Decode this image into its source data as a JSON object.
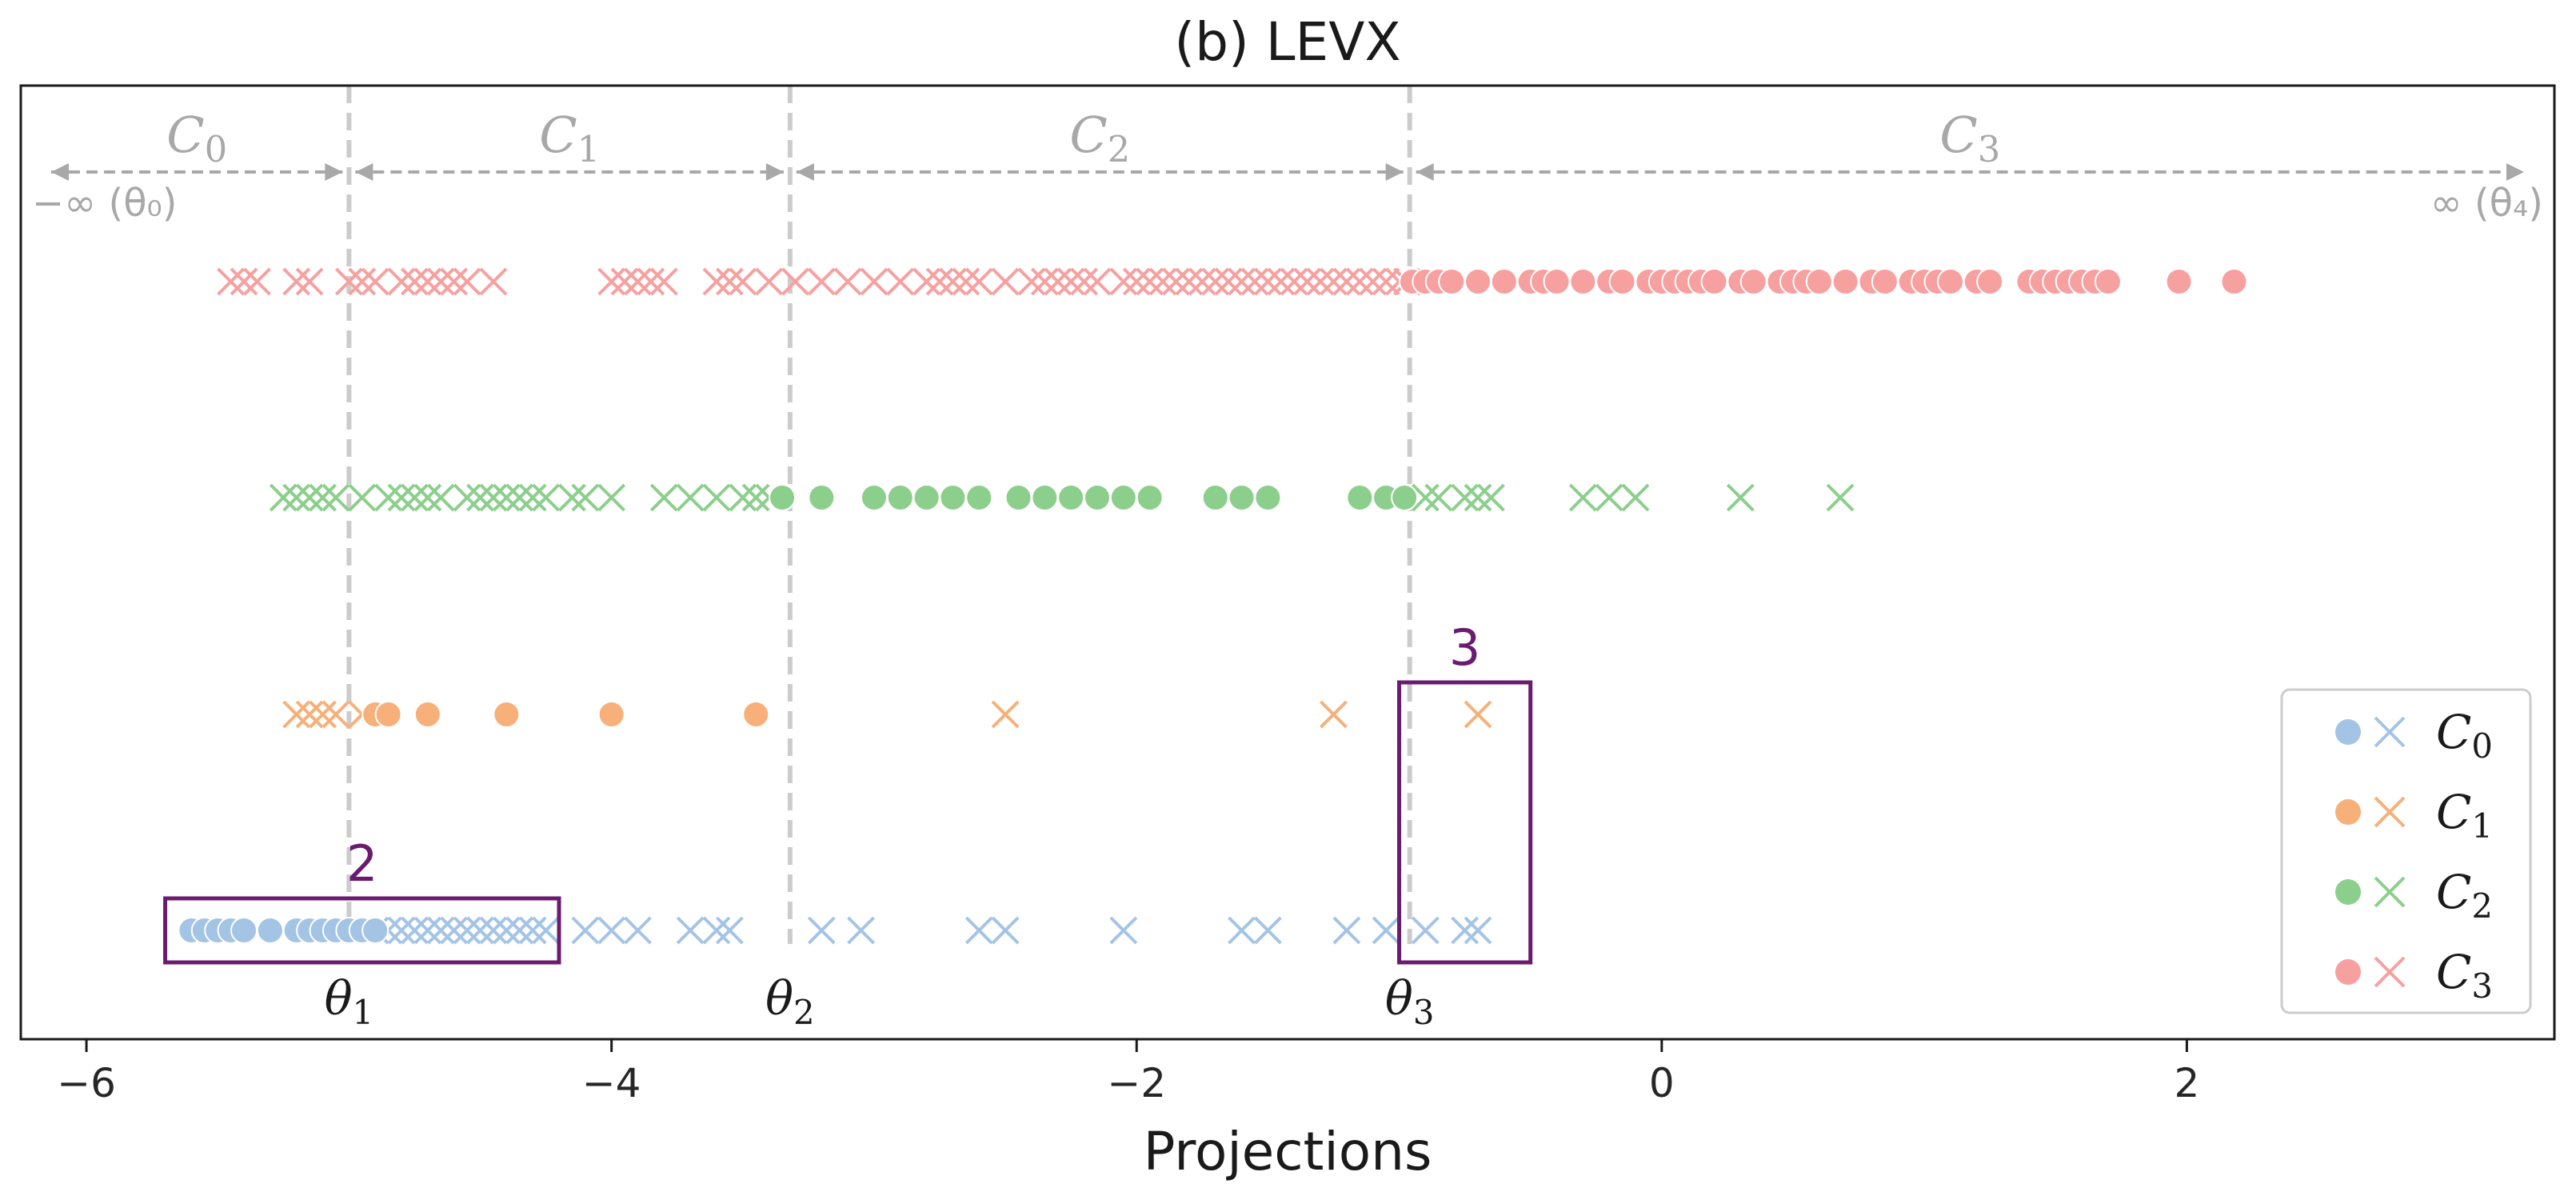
{
  "chart_data": {
    "type": "scatter",
    "title": "(b) LEVX",
    "xlabel": "Projections",
    "ylabel": "",
    "xlim": [
      -6.25,
      3.4
    ],
    "xticks": [
      -6,
      -4,
      -2,
      0,
      2
    ],
    "xtick_labels": [
      "−6",
      "−4",
      "−2",
      "0",
      "2"
    ],
    "rows": [
      "C_3",
      "C_2",
      "C_1",
      "C_0"
    ],
    "thresholds": [
      {
        "name": "theta_1",
        "label": "θ",
        "sub": "1",
        "value": -5.0
      },
      {
        "name": "theta_2",
        "label": "θ",
        "sub": "2",
        "value": -3.32
      },
      {
        "name": "theta_3",
        "label": "θ",
        "sub": "3",
        "value": -0.96
      }
    ],
    "regions": [
      {
        "label": "C",
        "sub": "0",
        "from": -6.25,
        "to": -5.0,
        "left_text": "−∞ (θ₀)"
      },
      {
        "label": "C",
        "sub": "1",
        "from": -5.0,
        "to": -3.32
      },
      {
        "label": "C",
        "sub": "2",
        "from": -3.32,
        "to": -0.96
      },
      {
        "label": "C",
        "sub": "3",
        "from": -0.96,
        "to": 3.4,
        "right_text": "∞ (θ₄)"
      }
    ],
    "series": [
      {
        "name": "C_0",
        "color": "#a4c4e6",
        "row": 3,
        "correct": [
          -5.6,
          -5.55,
          -5.5,
          -5.45,
          -5.4,
          -5.3,
          -5.2,
          -5.15,
          -5.1,
          -5.05,
          -5.0,
          -4.95,
          -4.9
        ],
        "wrong": [
          -5.0,
          -4.95,
          -4.9,
          -4.85,
          -4.8,
          -4.75,
          -4.7,
          -4.65,
          -4.6,
          -4.55,
          -4.5,
          -4.45,
          -4.4,
          -4.35,
          -4.3,
          -4.25,
          -4.1,
          -4.0,
          -3.9,
          -3.7,
          -3.6,
          -3.55,
          -3.2,
          -3.05,
          -2.6,
          -2.5,
          -2.05,
          -1.6,
          -1.5,
          -1.2,
          -1.05,
          -0.9,
          -0.75,
          -0.7
        ]
      },
      {
        "name": "C_1",
        "color": "#f7b07a",
        "row": 2,
        "correct": [
          -4.9,
          -4.85,
          -4.7,
          -4.4,
          -4.0,
          -3.45
        ],
        "wrong": [
          -5.2,
          -5.15,
          -5.1,
          -5.05,
          -4.95,
          -2.5,
          -1.25,
          -0.7
        ]
      },
      {
        "name": "C_2",
        "color": "#8ccf8c",
        "row": 1,
        "correct": [
          -3.35,
          -3.2,
          -3.0,
          -2.9,
          -2.8,
          -2.7,
          -2.6,
          -2.45,
          -2.35,
          -2.25,
          -2.15,
          -2.05,
          -1.95,
          -1.7,
          -1.6,
          -1.5,
          -1.15,
          -1.05,
          -0.98
        ],
        "wrong": [
          -5.25,
          -5.2,
          -5.15,
          -5.1,
          -5.05,
          -4.95,
          -4.85,
          -4.8,
          -4.75,
          -4.7,
          -4.65,
          -4.55,
          -4.5,
          -4.45,
          -4.4,
          -4.35,
          -4.3,
          -4.25,
          -4.15,
          -4.1,
          -4.0,
          -3.8,
          -3.7,
          -3.6,
          -3.5,
          -3.45,
          -3.4,
          -0.9,
          -0.85,
          -0.75,
          -0.7,
          -0.65,
          -0.3,
          -0.2,
          -0.1,
          0.3,
          0.68
        ]
      },
      {
        "name": "C_3",
        "color": "#f7a0a0",
        "row": 0,
        "correct": [
          -0.95,
          -0.9,
          -0.85,
          -0.8,
          -0.7,
          -0.6,
          -0.5,
          -0.45,
          -0.4,
          -0.3,
          -0.2,
          -0.15,
          -0.05,
          0.0,
          0.05,
          0.1,
          0.15,
          0.2,
          0.3,
          0.35,
          0.45,
          0.5,
          0.55,
          0.6,
          0.7,
          0.8,
          0.85,
          0.95,
          1.0,
          1.05,
          1.1,
          1.2,
          1.25,
          1.4,
          1.45,
          1.5,
          1.55,
          1.6,
          1.65,
          1.7,
          1.97,
          2.18
        ],
        "wrong": [
          -5.45,
          -5.4,
          -5.35,
          -5.2,
          -5.15,
          -5.0,
          -4.95,
          -4.9,
          -4.8,
          -4.75,
          -4.7,
          -4.65,
          -4.6,
          -4.55,
          -4.45,
          -4.0,
          -3.95,
          -3.9,
          -3.85,
          -3.8,
          -3.6,
          -3.55,
          -3.5,
          -3.4,
          -3.3,
          -3.2,
          -3.1,
          -3.0,
          -2.9,
          -2.8,
          -2.75,
          -2.7,
          -2.65,
          -2.6,
          -2.5,
          -2.4,
          -2.35,
          -2.3,
          -2.25,
          -2.2,
          -2.15,
          -2.05,
          -2.0,
          -1.95,
          -1.9,
          -1.85,
          -1.8,
          -1.75,
          -1.7,
          -1.65,
          -1.6,
          -1.55,
          -1.5,
          -1.45,
          -1.4,
          -1.35,
          -1.3,
          -1.25,
          -1.2,
          -1.15,
          -1.1,
          -1.05,
          -1.0,
          -0.97
        ]
      }
    ],
    "highlight_boxes": [
      {
        "label": "2",
        "x_from": -5.7,
        "x_to": -4.2,
        "row": 3
      },
      {
        "label": "3",
        "x_from": -1.0,
        "x_to": -0.5,
        "rows": [
          2,
          3
        ]
      }
    ],
    "legend": {
      "placement": "lower-right",
      "entries": [
        {
          "label": "C",
          "sub": "0",
          "color": "#a4c4e6"
        },
        {
          "label": "C",
          "sub": "1",
          "color": "#f7b07a"
        },
        {
          "label": "C",
          "sub": "2",
          "color": "#8ccf8c"
        },
        {
          "label": "C",
          "sub": "3",
          "color": "#f7a0a0"
        }
      ]
    },
    "colors": {
      "threshold_line": "#cccccc",
      "region_text": "#a8a8a8",
      "highlight_box": "#6a1b6e",
      "axis": "#1a1a1a"
    }
  }
}
